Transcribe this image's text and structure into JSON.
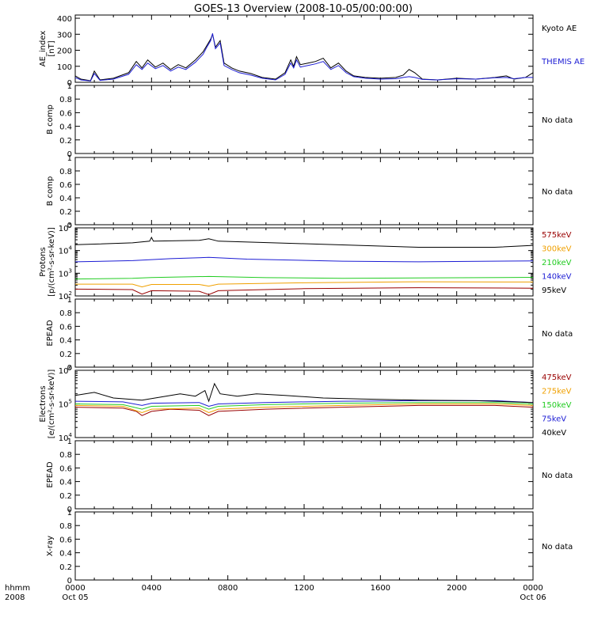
{
  "title": "GOES-13 Overview (2008-10-05/00:00:00)",
  "colors": {
    "black": "#000000",
    "blue": "#1c1cd4",
    "green": "#22cc22",
    "orange": "#f0a000",
    "red": "#990000"
  },
  "time_axis": {
    "left_labels": [
      "hhmm",
      "2008"
    ],
    "ticks": [
      {
        "hour": 0,
        "label": "0000",
        "sublabel": "Oct 05"
      },
      {
        "hour": 4,
        "label": "0400",
        "sublabel": ""
      },
      {
        "hour": 8,
        "label": "0800",
        "sublabel": ""
      },
      {
        "hour": 12,
        "label": "1200",
        "sublabel": ""
      },
      {
        "hour": 16,
        "label": "1600",
        "sublabel": ""
      },
      {
        "hour": 20,
        "label": "2000",
        "sublabel": ""
      },
      {
        "hour": 24,
        "label": "0000",
        "sublabel": "Oct 06"
      }
    ]
  },
  "chart_data": [
    {
      "panel": "ae",
      "type": "line",
      "ylabel": [
        "AE_index",
        "[nT]"
      ],
      "scale": "linear",
      "ylim": [
        0,
        420
      ],
      "yticks": [
        0,
        100,
        200,
        300,
        400
      ],
      "x_unit": "hours from 2008-10-05 00:00",
      "series": [
        {
          "name": "Kyoto AE",
          "color": "black",
          "points": [
            [
              0,
              40
            ],
            [
              0.3,
              20
            ],
            [
              0.8,
              10
            ],
            [
              1.0,
              70
            ],
            [
              1.3,
              15
            ],
            [
              2.0,
              25
            ],
            [
              2.8,
              60
            ],
            [
              3.2,
              130
            ],
            [
              3.5,
              90
            ],
            [
              3.8,
              140
            ],
            [
              4.2,
              95
            ],
            [
              4.6,
              120
            ],
            [
              5.0,
              80
            ],
            [
              5.4,
              110
            ],
            [
              5.8,
              90
            ],
            [
              6.3,
              140
            ],
            [
              6.7,
              190
            ],
            [
              6.9,
              230
            ],
            [
              7.1,
              270
            ],
            [
              7.2,
              300
            ],
            [
              7.35,
              220
            ],
            [
              7.6,
              260
            ],
            [
              7.8,
              120
            ],
            [
              8.2,
              90
            ],
            [
              8.6,
              70
            ],
            [
              9.2,
              55
            ],
            [
              9.8,
              30
            ],
            [
              10.5,
              20
            ],
            [
              11.0,
              60
            ],
            [
              11.3,
              140
            ],
            [
              11.45,
              100
            ],
            [
              11.6,
              160
            ],
            [
              11.8,
              110
            ],
            [
              12.2,
              120
            ],
            [
              12.6,
              130
            ],
            [
              13.0,
              150
            ],
            [
              13.4,
              90
            ],
            [
              13.8,
              120
            ],
            [
              14.2,
              70
            ],
            [
              14.6,
              40
            ],
            [
              15.2,
              30
            ],
            [
              16.0,
              25
            ],
            [
              16.8,
              30
            ],
            [
              17.2,
              45
            ],
            [
              17.5,
              80
            ],
            [
              17.8,
              60
            ],
            [
              18.2,
              20
            ],
            [
              19.0,
              15
            ],
            [
              20.0,
              25
            ],
            [
              21.0,
              20
            ],
            [
              22.0,
              30
            ],
            [
              22.6,
              40
            ],
            [
              23.0,
              20
            ],
            [
              23.6,
              30
            ],
            [
              24,
              60
            ]
          ]
        },
        {
          "name": "THEMIS AE",
          "color": "blue",
          "points": [
            [
              0,
              30
            ],
            [
              0.3,
              15
            ],
            [
              0.8,
              8
            ],
            [
              1.0,
              55
            ],
            [
              1.3,
              12
            ],
            [
              2.0,
              20
            ],
            [
              2.8,
              50
            ],
            [
              3.2,
              110
            ],
            [
              3.5,
              80
            ],
            [
              3.8,
              120
            ],
            [
              4.2,
              85
            ],
            [
              4.6,
              105
            ],
            [
              5.0,
              70
            ],
            [
              5.4,
              95
            ],
            [
              5.8,
              80
            ],
            [
              6.3,
              125
            ],
            [
              6.7,
              175
            ],
            [
              6.9,
              220
            ],
            [
              7.1,
              260
            ],
            [
              7.2,
              305
            ],
            [
              7.35,
              210
            ],
            [
              7.6,
              245
            ],
            [
              7.8,
              105
            ],
            [
              8.2,
              80
            ],
            [
              8.6,
              60
            ],
            [
              9.2,
              45
            ],
            [
              9.8,
              25
            ],
            [
              10.5,
              15
            ],
            [
              11.0,
              50
            ],
            [
              11.3,
              120
            ],
            [
              11.45,
              90
            ],
            [
              11.6,
              140
            ],
            [
              11.8,
              95
            ],
            [
              12.2,
              105
            ],
            [
              12.6,
              115
            ],
            [
              13.0,
              130
            ],
            [
              13.4,
              80
            ],
            [
              13.8,
              105
            ],
            [
              14.2,
              60
            ],
            [
              14.6,
              35
            ],
            [
              15.2,
              25
            ],
            [
              16.0,
              20
            ],
            [
              16.8,
              22
            ],
            [
              17.2,
              30
            ],
            [
              17.5,
              35
            ],
            [
              17.8,
              30
            ],
            [
              18.2,
              18
            ],
            [
              19.0,
              15
            ],
            [
              20.0,
              22
            ],
            [
              21.0,
              20
            ],
            [
              22.0,
              28
            ],
            [
              22.6,
              30
            ],
            [
              23.0,
              22
            ],
            [
              23.6,
              30
            ],
            [
              24,
              30
            ]
          ]
        }
      ]
    },
    {
      "panel": "bcomp1",
      "type": "line",
      "ylabel": [
        "B comp"
      ],
      "scale": "linear",
      "ylim": [
        0,
        1
      ],
      "yticks": [
        0,
        0.2,
        0.4,
        0.6,
        0.8,
        1.0
      ],
      "status": "No data",
      "series": []
    },
    {
      "panel": "bcomp2",
      "type": "line",
      "ylabel": [
        "B comp"
      ],
      "scale": "linear",
      "ylim": [
        0,
        1
      ],
      "yticks": [
        0,
        0.2,
        0.4,
        0.6,
        0.8,
        1.0
      ],
      "status": "No data",
      "series": []
    },
    {
      "panel": "protons",
      "type": "line",
      "ylabel": [
        "Protons",
        "[p/(cm²-s-sr-keV)]"
      ],
      "scale": "log",
      "ylim": [
        100,
        100000
      ],
      "yticks": [
        100,
        1000,
        10000,
        100000
      ],
      "series": [
        {
          "name": "575keV",
          "color": "red",
          "points": [
            [
              0,
              200
            ],
            [
              3.0,
              190
            ],
            [
              3.5,
              120
            ],
            [
              4.0,
              170
            ],
            [
              6.5,
              160
            ],
            [
              7.0,
              115
            ],
            [
              7.5,
              170
            ],
            [
              12,
              210
            ],
            [
              18,
              230
            ],
            [
              24,
              220
            ]
          ]
        },
        {
          "name": "300keV",
          "color": "orange",
          "points": [
            [
              0,
              330
            ],
            [
              3.0,
              330
            ],
            [
              3.5,
              250
            ],
            [
              4.0,
              320
            ],
            [
              6.5,
              320
            ],
            [
              7.0,
              270
            ],
            [
              7.5,
              330
            ],
            [
              12,
              380
            ],
            [
              18,
              420
            ],
            [
              24,
              410
            ]
          ]
        },
        {
          "name": "210keV",
          "color": "green",
          "points": [
            [
              0,
              560
            ],
            [
              3.0,
              600
            ],
            [
              4.0,
              650
            ],
            [
              7.0,
              720
            ],
            [
              10,
              640
            ],
            [
              14,
              600
            ],
            [
              18,
              620
            ],
            [
              24,
              660
            ]
          ]
        },
        {
          "name": "140keV",
          "color": "blue",
          "points": [
            [
              0,
              3200
            ],
            [
              3.0,
              3600
            ],
            [
              5.0,
              4400
            ],
            [
              7.0,
              5000
            ],
            [
              9,
              4200
            ],
            [
              14,
              3400
            ],
            [
              18,
              3200
            ],
            [
              24,
              3500
            ]
          ]
        },
        {
          "name": "95keV",
          "color": "black",
          "points": [
            [
              0,
              18000
            ],
            [
              3.0,
              22000
            ],
            [
              3.9,
              26000
            ],
            [
              4.0,
              38000
            ],
            [
              4.1,
              26000
            ],
            [
              6.5,
              28000
            ],
            [
              7.0,
              33000
            ],
            [
              7.5,
              26000
            ],
            [
              12,
              20000
            ],
            [
              18,
              14000
            ],
            [
              22,
              14000
            ],
            [
              24,
              17000
            ]
          ]
        }
      ]
    },
    {
      "panel": "epead1",
      "type": "line",
      "ylabel": [
        "EPEAD"
      ],
      "scale": "linear",
      "ylim": [
        0,
        1
      ],
      "yticks": [
        0,
        0.2,
        0.4,
        0.6,
        0.8,
        1.0
      ],
      "status": "No data",
      "series": []
    },
    {
      "panel": "electrons",
      "type": "line",
      "ylabel": [
        "Electrons",
        "[e/(cm²-s-sr-keV)]"
      ],
      "scale": "log",
      "ylim": [
        10000,
        1000000
      ],
      "yticks": [
        10000,
        100000,
        1000000
      ],
      "series": [
        {
          "name": "475keV",
          "color": "red",
          "points": [
            [
              0,
              80000
            ],
            [
              2.5,
              75000
            ],
            [
              3.2,
              60000
            ],
            [
              3.5,
              45000
            ],
            [
              4.0,
              60000
            ],
            [
              5,
              70000
            ],
            [
              6.5,
              65000
            ],
            [
              7.0,
              45000
            ],
            [
              7.5,
              60000
            ],
            [
              10,
              70000
            ],
            [
              14,
              80000
            ],
            [
              18,
              90000
            ],
            [
              22,
              90000
            ],
            [
              24,
              80000
            ]
          ]
        },
        {
          "name": "275keV",
          "color": "orange",
          "points": [
            [
              0,
              90000
            ],
            [
              2.5,
              85000
            ],
            [
              3.5,
              55000
            ],
            [
              4.0,
              70000
            ],
            [
              6.5,
              75000
            ],
            [
              7.0,
              55000
            ],
            [
              7.5,
              70000
            ],
            [
              10,
              80000
            ],
            [
              14,
              90000
            ],
            [
              18,
              100000
            ],
            [
              22,
              100000
            ],
            [
              24,
              90000
            ]
          ]
        },
        {
          "name": "150keV",
          "color": "green",
          "points": [
            [
              0,
              100000
            ],
            [
              2.5,
              95000
            ],
            [
              3.5,
              70000
            ],
            [
              4.0,
              85000
            ],
            [
              6.5,
              90000
            ],
            [
              7.0,
              70000
            ],
            [
              7.5,
              85000
            ],
            [
              10,
              95000
            ],
            [
              14,
              105000
            ],
            [
              18,
              110000
            ],
            [
              22,
              110000
            ],
            [
              24,
              100000
            ]
          ]
        },
        {
          "name": "75keV",
          "color": "blue",
          "points": [
            [
              0,
              120000
            ],
            [
              2.5,
              115000
            ],
            [
              3.5,
              90000
            ],
            [
              4.0,
              105000
            ],
            [
              6.5,
              110000
            ],
            [
              7.0,
              85000
            ],
            [
              7.5,
              100000
            ],
            [
              10,
              110000
            ],
            [
              14,
              120000
            ],
            [
              18,
              125000
            ],
            [
              22,
              125000
            ],
            [
              24,
              110000
            ]
          ]
        },
        {
          "name": "40keV",
          "color": "black",
          "points": [
            [
              0,
              180000
            ],
            [
              1.0,
              220000
            ],
            [
              2.0,
              150000
            ],
            [
              3.5,
              130000
            ],
            [
              4.5,
              160000
            ],
            [
              5.5,
              200000
            ],
            [
              6.3,
              170000
            ],
            [
              6.8,
              250000
            ],
            [
              7.0,
              120000
            ],
            [
              7.3,
              400000
            ],
            [
              7.6,
              200000
            ],
            [
              8.5,
              170000
            ],
            [
              9.5,
              200000
            ],
            [
              11,
              180000
            ],
            [
              13,
              150000
            ],
            [
              15,
              140000
            ],
            [
              18,
              130000
            ],
            [
              21,
              125000
            ],
            [
              24,
              110000
            ]
          ]
        }
      ]
    },
    {
      "panel": "epead2",
      "type": "line",
      "ylabel": [
        "EPEAD"
      ],
      "scale": "linear",
      "ylim": [
        0,
        1
      ],
      "yticks": [
        0,
        0.2,
        0.4,
        0.6,
        0.8,
        1.0
      ],
      "status": "No data",
      "series": []
    },
    {
      "panel": "xray",
      "type": "line",
      "ylabel": [
        "X-ray"
      ],
      "scale": "linear",
      "ylim": [
        0,
        1
      ],
      "yticks": [
        0,
        0.2,
        0.4,
        0.6,
        0.8,
        1.0
      ],
      "status": "No data",
      "series": []
    }
  ]
}
